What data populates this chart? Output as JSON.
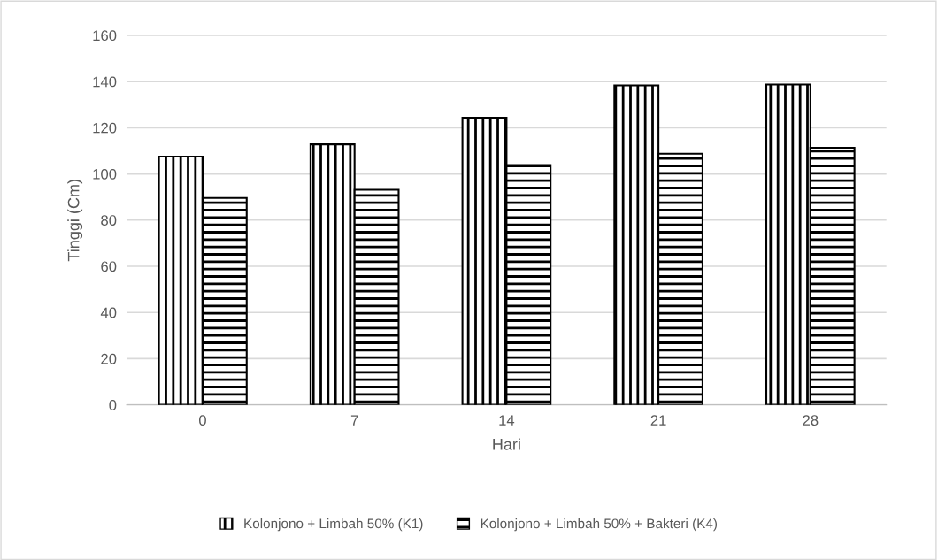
{
  "chart_data": {
    "type": "bar",
    "xlabel": "Hari",
    "ylabel": "Tinggi (Cm)",
    "categories": [
      "0",
      "7",
      "14",
      "21",
      "28"
    ],
    "series": [
      {
        "name": "Kolonjono + Limbah 50% (K1)",
        "color": "#000000",
        "values": [
          107.5,
          112.8,
          124.3,
          138.3,
          138.7
        ]
      },
      {
        "name": "Kolonjono + Limbah 50% + Bakteri (K4)",
        "color": "#000000",
        "values": [
          89.6,
          93.1,
          103.8,
          108.7,
          111.3
        ]
      }
    ],
    "ylim": [
      0,
      160
    ],
    "yticks": [
      0,
      20,
      40,
      60,
      80,
      100,
      120,
      140,
      160
    ],
    "grid": "y",
    "legend": "bottom"
  }
}
